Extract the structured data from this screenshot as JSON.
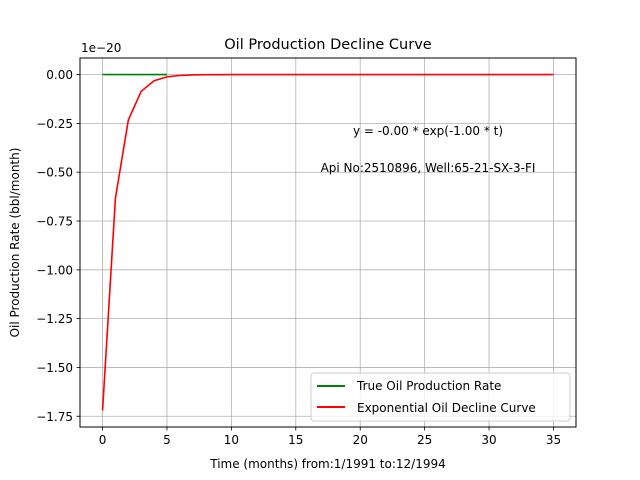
{
  "chart_data": {
    "type": "line",
    "title": "Oil Production Decline Curve",
    "xlabel": "Time (months) from:1/1991 to:12/1994",
    "ylabel": "Oil Production Rate (bbl/month)",
    "y_offset_label": "1e−20",
    "xlim": [
      -1.75,
      36.75
    ],
    "ylim": [
      -1.805,
      0.085
    ],
    "x_ticks": [
      0,
      5,
      10,
      15,
      20,
      25,
      30,
      35
    ],
    "x_tick_labels": [
      "0",
      "5",
      "10",
      "15",
      "20",
      "25",
      "30",
      "35"
    ],
    "y_ticks": [
      0.0,
      -0.25,
      -0.5,
      -0.75,
      -1.0,
      -1.25,
      -1.5,
      -1.75
    ],
    "y_tick_labels": [
      "0.00",
      "−0.25",
      "−0.50",
      "−0.75",
      "−1.00",
      "−1.25",
      "−1.50",
      "−1.75"
    ],
    "grid": true,
    "legend_position": "lower-right",
    "annotations": [
      {
        "text": "y = -0.00 * exp(-1.00 * t)",
        "x": 25.0,
        "y": -0.29
      },
      {
        "text": "Api No:2510896, Well:65-21-SX-3-FI",
        "x": 25.0,
        "y": -0.48
      }
    ],
    "x": [
      0,
      1,
      2,
      3,
      4,
      5,
      6,
      7,
      8,
      9,
      10,
      11,
      12,
      13,
      14,
      15,
      16,
      17,
      18,
      19,
      20,
      21,
      22,
      23,
      24,
      25,
      26,
      27,
      28,
      29,
      30,
      31,
      32,
      33,
      34,
      35
    ],
    "series": [
      {
        "name": "True Oil Production Rate",
        "color": "#008000",
        "x": [
          0,
          5
        ],
        "values": [
          0,
          0
        ]
      },
      {
        "name": "Exponential Oil Decline Curve",
        "color": "#ff0000",
        "values": [
          -1.72,
          -0.633,
          -0.233,
          -0.0856,
          -0.0315,
          -0.0116,
          -0.00426,
          -0.00157,
          -0.000577,
          -0.000212,
          -7.81e-05,
          0,
          0,
          0,
          0,
          0,
          0,
          0,
          0,
          0,
          0,
          0,
          0,
          0,
          0,
          0,
          0,
          0,
          0,
          0,
          0,
          0,
          0,
          0,
          0,
          0
        ]
      }
    ]
  }
}
